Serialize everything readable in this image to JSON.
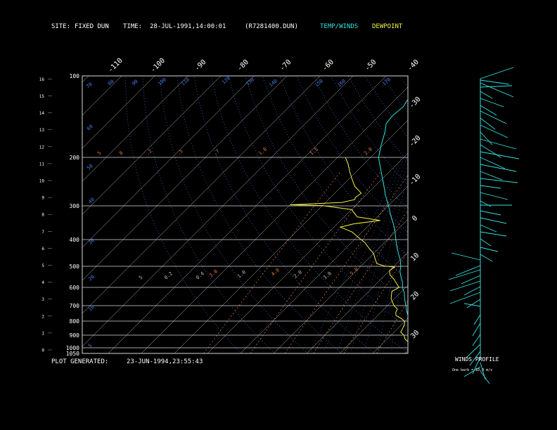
{
  "header": {
    "site_label": "SITE:",
    "site_value": "FIXED DUN",
    "time_label": "TIME:",
    "time_value": "28-JUL-1991,14:00:01",
    "file": "(R7281400.DUN)",
    "legend_temp": "TEMP/WINDS",
    "legend_dew": "DEWPOINT"
  },
  "footer": {
    "generated_label": "PLOT GENERATED:",
    "generated_value": "23-JUN-1994,23:55:43"
  },
  "winds": {
    "title": "WINDS PROFILE",
    "note": "One barb = 10.0 m/s"
  },
  "colors": {
    "background": "#000000",
    "temp": "#33e0e0",
    "dew": "#f5f04a",
    "isotherm": "#b8b8b8",
    "mixing_ratio": "#e0784a",
    "dry_adiabat": "#4a7ce6",
    "moist_adiabat": "#4a7ce6",
    "text": "#ffffff"
  },
  "chart_data": {
    "type": "line",
    "title": "",
    "xlabel": "",
    "ylabel": "",
    "pressure_levels": [
      100,
      200,
      300,
      400,
      500,
      600,
      700,
      800,
      900,
      1000,
      1050
    ],
    "height_km_ticks": [
      0,
      1,
      2,
      3,
      4,
      5,
      6,
      7,
      8,
      9,
      10,
      11,
      12,
      13,
      14,
      15,
      16
    ],
    "top_temp_ticks": [
      -110,
      -100,
      -90,
      -80,
      -70,
      -60,
      -50,
      -40
    ],
    "right_temp_ticks": [
      -30,
      -20,
      -10,
      0,
      10,
      20,
      30
    ],
    "mixing_ratio_labels": [
      "5",
      "8",
      ".2",
      ".5",
      ".7",
      "1.0",
      "1.5",
      "2.0",
      "3.0",
      "4.0",
      "5.0"
    ],
    "dry_adiabat_labels": [
      "5",
      "10",
      "20",
      "30",
      "40",
      "50",
      "60",
      "70",
      "80",
      "90",
      "100",
      "110",
      "120",
      "130",
      "140",
      "150",
      "160",
      "170"
    ],
    "moist_adiabat_labels": [
      "5",
      "0.2",
      "0.4",
      "1.0",
      "2.0",
      "3.0"
    ],
    "series": [
      {
        "name": "TEMP/WINDS",
        "points": [
          [
            1000,
            24.5
          ],
          [
            990,
            22.5
          ],
          [
            975,
            21.5
          ],
          [
            950,
            20.0
          ],
          [
            925,
            17.6
          ],
          [
            900,
            16.2
          ],
          [
            875,
            15.0
          ],
          [
            850,
            13.5
          ],
          [
            825,
            12.5
          ],
          [
            800,
            11.0
          ],
          [
            775,
            10.0
          ],
          [
            750,
            8.5
          ],
          [
            725,
            7.0
          ],
          [
            700,
            5.6
          ],
          [
            675,
            4.0
          ],
          [
            650,
            2.5
          ],
          [
            625,
            1.0
          ],
          [
            600,
            -1.0
          ],
          [
            575,
            -2.5
          ],
          [
            550,
            -4.5
          ],
          [
            525,
            -6.5
          ],
          [
            500,
            -8.0
          ],
          [
            475,
            -10.0
          ],
          [
            450,
            -12.5
          ],
          [
            425,
            -15.0
          ],
          [
            400,
            -17.5
          ],
          [
            375,
            -20.0
          ],
          [
            350,
            -23.0
          ],
          [
            325,
            -26.5
          ],
          [
            300,
            -30.0
          ],
          [
            275,
            -34.0
          ],
          [
            250,
            -38.0
          ],
          [
            225,
            -42.5
          ],
          [
            200,
            -47.5
          ],
          [
            180,
            -50.5
          ],
          [
            160,
            -53.5
          ],
          [
            150,
            -55.5
          ],
          [
            140,
            -56.0
          ],
          [
            130,
            -55.5
          ],
          [
            120,
            -56.5
          ],
          [
            110,
            -58.0
          ],
          [
            100,
            -60.0
          ]
        ]
      },
      {
        "name": "DEWPOINT",
        "points": [
          [
            1000,
            22.0
          ],
          [
            985,
            18.5
          ],
          [
            960,
            18.0
          ],
          [
            930,
            15.5
          ],
          [
            900,
            14.0
          ],
          [
            875,
            12.0
          ],
          [
            850,
            11.5
          ],
          [
            825,
            11.0
          ],
          [
            800,
            10.0
          ],
          [
            780,
            8.0
          ],
          [
            760,
            5.5
          ],
          [
            740,
            4.5
          ],
          [
            720,
            4.0
          ],
          [
            700,
            2.0
          ],
          [
            680,
            0.5
          ],
          [
            660,
            -1.0
          ],
          [
            640,
            -2.0
          ],
          [
            620,
            -3.0
          ],
          [
            600,
            -2.0
          ],
          [
            580,
            -4.0
          ],
          [
            560,
            -6.0
          ],
          [
            540,
            -8.5
          ],
          [
            520,
            -10.0
          ],
          [
            505,
            -9.5
          ],
          [
            500,
            -13.0
          ],
          [
            490,
            -16.0
          ],
          [
            470,
            -18.0
          ],
          [
            450,
            -20.0
          ],
          [
            430,
            -23.0
          ],
          [
            410,
            -26.0
          ],
          [
            400,
            -28.0
          ],
          [
            390,
            -30.0
          ],
          [
            375,
            -33.0
          ],
          [
            360,
            -38.0
          ],
          [
            350,
            -35.0
          ],
          [
            340,
            -28.0
          ],
          [
            330,
            -36.0
          ],
          [
            320,
            -38.0
          ],
          [
            310,
            -40.0
          ],
          [
            300,
            -50.0
          ],
          [
            298,
            -60.0
          ],
          [
            292,
            -45.0
          ],
          [
            285,
            -42.0
          ],
          [
            280,
            -42.5
          ],
          [
            270,
            -42.0
          ],
          [
            255,
            -46.0
          ],
          [
            240,
            -49.0
          ],
          [
            225,
            -52.0
          ],
          [
            210,
            -55.0
          ],
          [
            200,
            -57.5
          ]
        ]
      }
    ]
  }
}
